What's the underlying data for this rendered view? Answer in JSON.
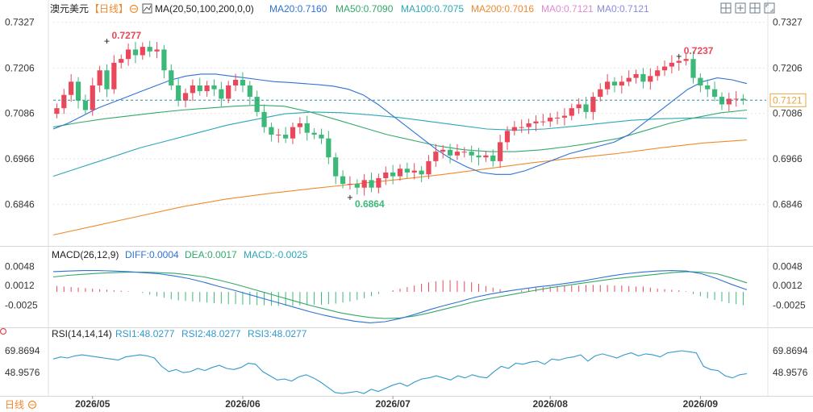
{
  "colors": {
    "up": "#e8485a",
    "down": "#3cb878",
    "ma20": "#2f72d6",
    "ma50": "#33a86a",
    "ma100": "#2aa8b8",
    "ma200": "#f08a2c",
    "diff": "#2f72d6",
    "dea": "#33a86a",
    "rsi": "#3399cc",
    "axis_text": "#333333",
    "grid": "#e4e4e4",
    "last_price_bg": "#ffffff",
    "last_price_line": "#2a8ea8"
  },
  "header": {
    "symbol": "澳元美元",
    "period": "【日线】",
    "ma_title": "MA(20,50,100,200,0,0)",
    "ma20_label": "MA20:0.7160",
    "ma50_label": "MA50:0.7090",
    "ma100_label": "MA100:0.7075",
    "ma200_label": "MA200:0.7016",
    "ma0a_label": "MA0:0.7121",
    "ma0b_label": "MA0:0.7121",
    "icon_names": [
      "settings-icon",
      "crosshair-icon",
      "expand-icon",
      "grid-icon",
      "fullscreen-icon"
    ]
  },
  "macd_header": {
    "title": "MACD(26,12,9)",
    "diff": "DIFF:0.0004",
    "dea": "DEA:0.0017",
    "macd": "MACD:-0.0025"
  },
  "rsi_header": {
    "title": "RSI(14,14,14)",
    "rsi1": "RSI1:48.0277",
    "rsi2": "RSI2:48.0277",
    "rsi3": "RSI3:48.0277"
  },
  "footer": {
    "period_label": "日线"
  },
  "chart_data": {
    "type": "candlestick",
    "price_axis_ticks": [
      "0.7327",
      "0.7206",
      "0.7086",
      "0.6966",
      "0.6846"
    ],
    "price_ylim": [
      0.6736,
      0.7339
    ],
    "last_price": "0.7121",
    "annotations": {
      "high": "0.7277",
      "low": "0.6864",
      "high2": "0.7237"
    },
    "x_ticks": [
      "2026/05",
      "2026/06",
      "2026/07",
      "2026/08",
      "2026/09"
    ],
    "x_tick_index": [
      5,
      26,
      47,
      69,
      90
    ],
    "candles_close": [
      0.71,
      0.7135,
      0.717,
      0.712,
      0.7095,
      0.716,
      0.72,
      0.715,
      0.722,
      0.723,
      0.7255,
      0.724,
      0.7262,
      0.725,
      0.7255,
      0.72,
      0.716,
      0.712,
      0.714,
      0.716,
      0.7145,
      0.716,
      0.715,
      0.7125,
      0.716,
      0.7175,
      0.716,
      0.713,
      0.709,
      0.705,
      0.703,
      0.703,
      0.702,
      0.705,
      0.706,
      0.7035,
      0.703,
      0.702,
      0.697,
      0.692,
      0.69,
      0.69,
      0.689,
      0.691,
      0.689,
      0.6915,
      0.693,
      0.692,
      0.694,
      0.693,
      0.6935,
      0.6925,
      0.696,
      0.6985,
      0.699,
      0.6975,
      0.6985,
      0.6985,
      0.6975,
      0.697,
      0.6975,
      0.696,
      0.701,
      0.704,
      0.705,
      0.705,
      0.706,
      0.7065,
      0.7065,
      0.7075,
      0.7075,
      0.708,
      0.71,
      0.711,
      0.709,
      0.713,
      0.715,
      0.717,
      0.716,
      0.717,
      0.718,
      0.719,
      0.717,
      0.7185,
      0.72,
      0.721,
      0.722,
      0.7225,
      0.723,
      0.718,
      0.716,
      0.715,
      0.713,
      0.711,
      0.7125,
      0.7125,
      0.7121
    ],
    "candles_open": [
      0.7085,
      0.71,
      0.7135,
      0.717,
      0.712,
      0.7095,
      0.716,
      0.72,
      0.715,
      0.722,
      0.723,
      0.7255,
      0.724,
      0.7262,
      0.725,
      0.7255,
      0.72,
      0.716,
      0.712,
      0.714,
      0.716,
      0.7145,
      0.716,
      0.715,
      0.7125,
      0.716,
      0.7175,
      0.716,
      0.713,
      0.709,
      0.705,
      0.703,
      0.703,
      0.702,
      0.705,
      0.706,
      0.7035,
      0.703,
      0.702,
      0.697,
      0.692,
      0.69,
      0.69,
      0.689,
      0.691,
      0.689,
      0.6915,
      0.693,
      0.692,
      0.694,
      0.693,
      0.6935,
      0.6925,
      0.696,
      0.6985,
      0.699,
      0.6975,
      0.6985,
      0.6985,
      0.6975,
      0.697,
      0.6975,
      0.696,
      0.701,
      0.704,
      0.705,
      0.705,
      0.706,
      0.7065,
      0.7065,
      0.7075,
      0.7075,
      0.708,
      0.71,
      0.711,
      0.709,
      0.713,
      0.715,
      0.717,
      0.716,
      0.717,
      0.718,
      0.719,
      0.717,
      0.7185,
      0.72,
      0.721,
      0.722,
      0.7225,
      0.723,
      0.718,
      0.716,
      0.715,
      0.713,
      0.711,
      0.7125,
      0.7125
    ],
    "ma_series": {
      "ma20": [
        0.7045,
        0.706,
        0.708,
        0.71,
        0.7115,
        0.713,
        0.7145,
        0.716,
        0.7175,
        0.7185,
        0.719,
        0.719,
        0.7185,
        0.718,
        0.7175,
        0.717,
        0.7168,
        0.7165,
        0.7162,
        0.7158,
        0.715,
        0.7135,
        0.711,
        0.708,
        0.705,
        0.702,
        0.699,
        0.6965,
        0.6945,
        0.693,
        0.6925,
        0.6925,
        0.6935,
        0.695,
        0.6965,
        0.698,
        0.699,
        0.7,
        0.701,
        0.703,
        0.706,
        0.709,
        0.712,
        0.715,
        0.717,
        0.718,
        0.7175,
        0.7165
      ],
      "ma50": [
        0.705,
        0.7062,
        0.7072,
        0.708,
        0.7088,
        0.7095,
        0.71,
        0.7105,
        0.7108,
        0.7105,
        0.709,
        0.707,
        0.705,
        0.703,
        0.7015,
        0.7,
        0.699,
        0.6985,
        0.6985,
        0.699,
        0.6998,
        0.7008,
        0.702,
        0.704,
        0.706,
        0.7075,
        0.7088,
        0.7095
      ],
      "ma100": [
        0.692,
        0.6945,
        0.697,
        0.6995,
        0.7015,
        0.7035,
        0.7055,
        0.707,
        0.7085,
        0.709,
        0.7088,
        0.7082,
        0.7075,
        0.7065,
        0.7055,
        0.7045,
        0.7042,
        0.7045,
        0.7052,
        0.706,
        0.7068,
        0.7072,
        0.7074,
        0.7075,
        0.7073
      ],
      "ma200": [
        0.6765,
        0.679,
        0.6815,
        0.684,
        0.686,
        0.6875,
        0.6888,
        0.69,
        0.6912,
        0.6925,
        0.694,
        0.6955,
        0.6968,
        0.698,
        0.6995,
        0.7008,
        0.7016
      ]
    },
    "macd_axis_ticks": [
      "0.0048",
      "0.0012",
      "-0.0025"
    ],
    "macd_ylim": [
      -0.0065,
      0.0056
    ],
    "macd_hist": [
      0.0011,
      0.001,
      0.0009,
      0.0008,
      0.0007,
      0.0006,
      0.0005,
      0.0004,
      0.0003,
      0.0002,
      0.0001,
      0.0,
      -0.0002,
      -0.0005,
      -0.0008,
      -0.0011,
      -0.0014,
      -0.0016,
      -0.0017,
      -0.0018,
      -0.0019,
      -0.002,
      -0.0021,
      -0.0022,
      -0.0023,
      -0.0023,
      -0.0024,
      -0.0024,
      -0.0025,
      -0.0025,
      -0.0026,
      -0.0026,
      -0.0026,
      -0.0026,
      -0.0025,
      -0.0025,
      -0.0024,
      -0.0024,
      -0.0023,
      -0.0022,
      -0.002,
      -0.0018,
      -0.0015,
      -0.0012,
      -0.0008,
      -0.0004,
      0.0,
      0.0003,
      0.0006,
      0.0009,
      0.0012,
      0.0015,
      0.0018,
      0.002,
      0.0022,
      0.0022,
      0.0021,
      0.002,
      0.0018,
      0.0015,
      0.0011,
      0.0008,
      0.0005,
      0.0002,
      0.0,
      0.0003,
      0.0006,
      0.0008,
      0.0009,
      0.001,
      0.0011,
      0.0012,
      0.0012,
      0.0012,
      0.0013,
      0.0013,
      0.0013,
      0.0013,
      0.0012,
      0.0012,
      0.0011,
      0.001,
      0.001,
      0.0008,
      0.0006,
      0.0005,
      0.0004,
      0.0003,
      0.0001,
      -0.0004,
      -0.0008,
      -0.0012,
      -0.0015,
      -0.0018,
      -0.0021,
      -0.0023,
      -0.0025
    ],
    "macd_diff": [
      0.0038,
      0.0039,
      0.004,
      0.004,
      0.0039,
      0.0038,
      0.0036,
      0.0034,
      0.003,
      0.0025,
      0.0018,
      0.001,
      0.0003,
      -0.0005,
      -0.0013,
      -0.0021,
      -0.0029,
      -0.0037,
      -0.0044,
      -0.005,
      -0.0055,
      -0.0058,
      -0.0056,
      -0.005,
      -0.0042,
      -0.0033,
      -0.0025,
      -0.0018,
      -0.001,
      -0.0004,
      0.0001,
      0.0005,
      0.0009,
      0.0012,
      0.0016,
      0.002,
      0.0025,
      0.003,
      0.0034,
      0.0037,
      0.0039,
      0.004,
      0.0039,
      0.0034,
      0.0025,
      0.0014,
      0.0004
    ],
    "macd_dea": [
      0.0028,
      0.0031,
      0.0033,
      0.0035,
      0.0036,
      0.0037,
      0.0037,
      0.0036,
      0.0035,
      0.0032,
      0.0028,
      0.0022,
      0.0015,
      0.0007,
      -0.0001,
      -0.0009,
      -0.0017,
      -0.0025,
      -0.0032,
      -0.0039,
      -0.0044,
      -0.0048,
      -0.005,
      -0.0049,
      -0.0045,
      -0.0039,
      -0.0032,
      -0.0025,
      -0.0018,
      -0.0012,
      -0.0007,
      -0.0002,
      0.0003,
      0.0008,
      0.0012,
      0.0016,
      0.002,
      0.0024,
      0.0027,
      0.003,
      0.0033,
      0.0036,
      0.0038,
      0.0037,
      0.0034,
      0.0026,
      0.0017
    ],
    "rsi_axis_ticks": [
      "69.8694",
      "48.9576"
    ],
    "rsi_ylim": [
      26,
      80
    ],
    "rsi_values": [
      62,
      64,
      63,
      65,
      66,
      65,
      64,
      63,
      62,
      61,
      64,
      65,
      66,
      65,
      63,
      55,
      50,
      52,
      49,
      50,
      53,
      51,
      54,
      56,
      53,
      52,
      54,
      58,
      57,
      50,
      46,
      42,
      43,
      41,
      45,
      47,
      44,
      40,
      35,
      30,
      29,
      30,
      31,
      29,
      33,
      31,
      34,
      37,
      39,
      36,
      40,
      43,
      44,
      46,
      44,
      42,
      46,
      44,
      47,
      45,
      44,
      50,
      55,
      53,
      58,
      57,
      59,
      60,
      57,
      62,
      61,
      63,
      64,
      66,
      60,
      65,
      67,
      65,
      63,
      66,
      68,
      65,
      67,
      66,
      64,
      68,
      69,
      70,
      69,
      68,
      55,
      52,
      51,
      46,
      44,
      47,
      48
    ]
  }
}
